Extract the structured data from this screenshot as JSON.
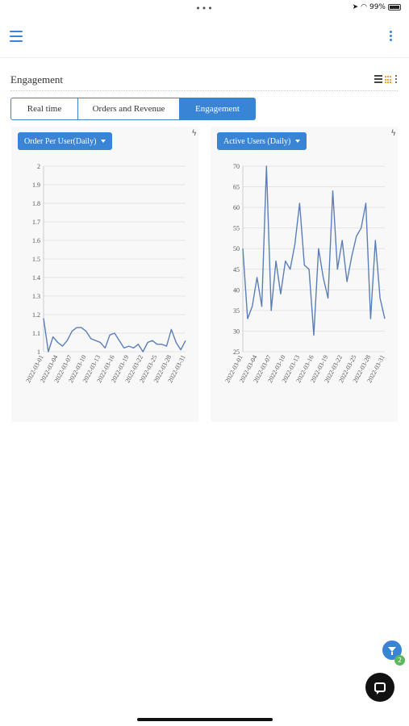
{
  "status": {
    "dots": "•••",
    "battery": "99%"
  },
  "section": {
    "title": "Engagement"
  },
  "tabs": [
    {
      "label": "Real time"
    },
    {
      "label": "Orders and Revenue"
    },
    {
      "label": "Engagement",
      "active": true
    }
  ],
  "charts": [
    {
      "dropdown_label": "Order Per User(Daily)"
    },
    {
      "dropdown_label": "Active Users (Daily)"
    }
  ],
  "filter_badge": "2",
  "colors": {
    "accent": "#3a84d6",
    "line": "#5a7fb8",
    "badge": "#5cb85c"
  },
  "chart_data": [
    {
      "type": "line",
      "ylim": [
        1,
        2
      ],
      "yticks": [
        "2",
        "1.9",
        "1.8",
        "1.7",
        "1.6",
        "1.5",
        "1.4",
        "1.3",
        "1.2",
        "1.1",
        "1"
      ],
      "xticks": [
        "2022-03-01",
        "2022-03-04",
        "2022-03-07",
        "2022-03-10",
        "2022-03-13",
        "2022-03-16",
        "2022-03-19",
        "2022-03-22",
        "2022-03-25",
        "2022-03-28",
        "2022-03-31"
      ],
      "x": [
        "2022-03-01",
        "2022-03-02",
        "2022-03-03",
        "2022-03-04",
        "2022-03-05",
        "2022-03-06",
        "2022-03-07",
        "2022-03-08",
        "2022-03-09",
        "2022-03-10",
        "2022-03-11",
        "2022-03-12",
        "2022-03-13",
        "2022-03-14",
        "2022-03-15",
        "2022-03-16",
        "2022-03-17",
        "2022-03-18",
        "2022-03-19",
        "2022-03-20",
        "2022-03-21",
        "2022-03-22",
        "2022-03-23",
        "2022-03-24",
        "2022-03-25",
        "2022-03-26",
        "2022-03-27",
        "2022-03-28",
        "2022-03-29",
        "2022-03-30",
        "2022-03-31"
      ],
      "values": [
        1.18,
        1.0,
        1.08,
        1.05,
        1.03,
        1.06,
        1.11,
        1.13,
        1.13,
        1.11,
        1.07,
        1.06,
        1.05,
        1.02,
        1.09,
        1.1,
        1.06,
        1.02,
        1.03,
        1.02,
        1.04,
        1.0,
        1.05,
        1.06,
        1.04,
        1.04,
        1.03,
        1.12,
        1.05,
        1.01,
        1.06
      ]
    },
    {
      "type": "line",
      "ylim": [
        25,
        70
      ],
      "yticks": [
        "70",
        "65",
        "60",
        "55",
        "50",
        "45",
        "40",
        "35",
        "30",
        "25"
      ],
      "xticks": [
        "2022-03-01",
        "2022-03-04",
        "2022-03-07",
        "2022-03-10",
        "2022-03-13",
        "2022-03-16",
        "2022-03-19",
        "2022-03-22",
        "2022-03-25",
        "2022-03-28",
        "2022-03-31"
      ],
      "x": [
        "2022-03-01",
        "2022-03-02",
        "2022-03-03",
        "2022-03-04",
        "2022-03-05",
        "2022-03-06",
        "2022-03-07",
        "2022-03-08",
        "2022-03-09",
        "2022-03-10",
        "2022-03-11",
        "2022-03-12",
        "2022-03-13",
        "2022-03-14",
        "2022-03-15",
        "2022-03-16",
        "2022-03-17",
        "2022-03-18",
        "2022-03-19",
        "2022-03-20",
        "2022-03-21",
        "2022-03-22",
        "2022-03-23",
        "2022-03-24",
        "2022-03-25",
        "2022-03-26",
        "2022-03-27",
        "2022-03-28",
        "2022-03-29",
        "2022-03-30",
        "2022-03-31"
      ],
      "values": [
        50,
        33,
        36,
        43,
        36,
        70,
        35,
        47,
        39,
        47,
        45,
        51,
        61,
        46,
        45,
        29,
        50,
        43,
        38,
        64,
        45,
        52,
        42,
        48,
        53,
        55,
        61,
        33,
        52,
        38,
        33
      ]
    }
  ]
}
